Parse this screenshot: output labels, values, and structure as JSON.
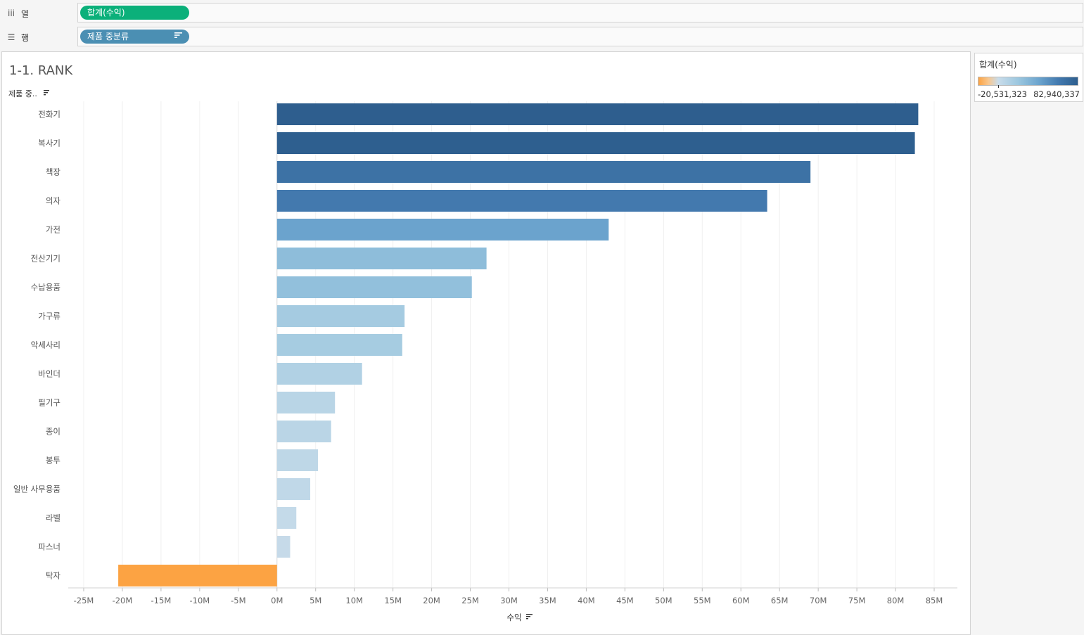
{
  "shelves": {
    "columns": {
      "icon": "iii",
      "icon_name": "columns-icon",
      "label": "열",
      "pill": "합계(수익)"
    },
    "rows": {
      "icon": "☰",
      "icon_name": "rows-icon",
      "label": "행",
      "pill": "제품 중분류",
      "sort_icon": "sort-icon"
    }
  },
  "sheet": {
    "title": "1-1. RANK",
    "row_header": "제품 중.."
  },
  "legend": {
    "title": "합계(수익)",
    "min_label": "-20,531,323",
    "max_label": "82,940,337",
    "min": -20531323,
    "max": 82940337
  },
  "chart_data": {
    "type": "bar",
    "orientation": "horizontal",
    "title": "1-1. RANK",
    "ylabel": "제품 중분류",
    "xlabel": "수익",
    "xlim": [
      -27000000,
      88000000
    ],
    "ticks": [
      -25000000,
      -20000000,
      -15000000,
      -10000000,
      -5000000,
      0,
      5000000,
      10000000,
      15000000,
      20000000,
      25000000,
      30000000,
      35000000,
      40000000,
      45000000,
      50000000,
      55000000,
      60000000,
      65000000,
      70000000,
      75000000,
      80000000,
      85000000
    ],
    "tick_labels": [
      "-25M",
      "-20M",
      "-15M",
      "-10M",
      "-5M",
      "0M",
      "5M",
      "10M",
      "15M",
      "20M",
      "25M",
      "30M",
      "35M",
      "40M",
      "45M",
      "50M",
      "55M",
      "60M",
      "65M",
      "70M",
      "75M",
      "80M",
      "85M"
    ],
    "categories": [
      "전화기",
      "복사기",
      "책장",
      "의자",
      "가전",
      "전산기기",
      "수납용품",
      "가구류",
      "악세사리",
      "바인더",
      "필기구",
      "종이",
      "봉투",
      "일반 사무용품",
      "라벨",
      "파스너",
      "탁자"
    ],
    "values": [
      82940337,
      82500000,
      69000000,
      63400000,
      42900000,
      27100000,
      25200000,
      16500000,
      16200000,
      11000000,
      7500000,
      7000000,
      5300000,
      4300000,
      2500000,
      1700000,
      -20531323
    ]
  }
}
